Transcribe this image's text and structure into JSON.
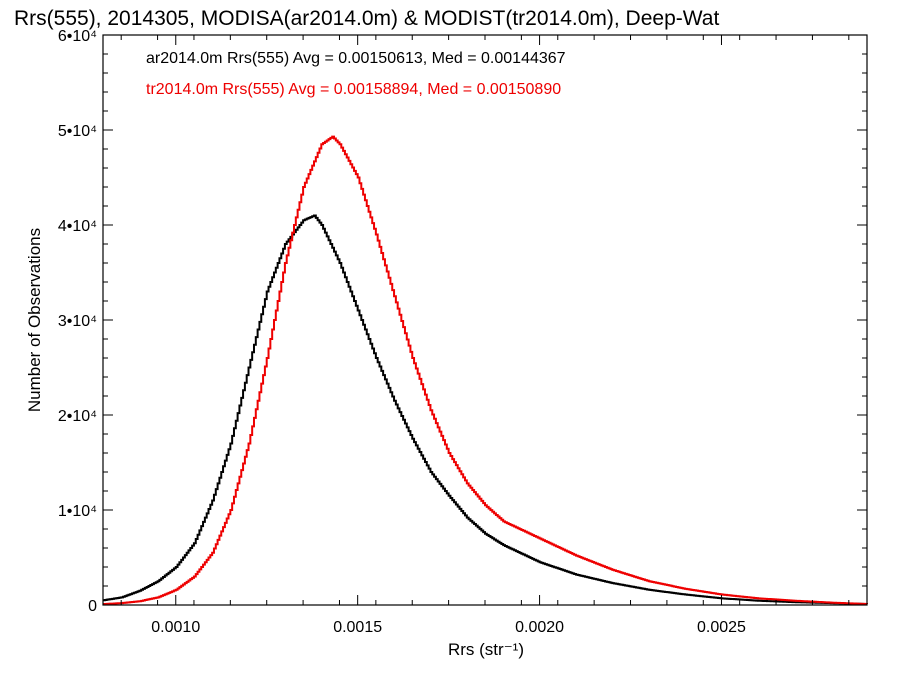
{
  "chart_data": {
    "type": "line",
    "title": "Rrs(555), 2014305, MODISA(ar2014.0m) & MODIST(tr2014.0m), Deep-Wat",
    "xlabel": "Rrs (str⁻¹)",
    "ylabel": "Number of Observations",
    "xlim": [
      0.0008,
      0.0029
    ],
    "ylim": [
      0,
      60000
    ],
    "x_ticks": [
      0.001,
      0.0015,
      0.002,
      0.0025
    ],
    "x_tick_labels": [
      "0.0010",
      "0.0015",
      "0.0020",
      "0.0025"
    ],
    "y_ticks": [
      0,
      10000,
      20000,
      30000,
      40000,
      50000,
      60000
    ],
    "y_tick_labels": [
      "0",
      "1•10⁴",
      "2•10⁴",
      "3•10⁴",
      "4•10⁴",
      "5•10⁴",
      "6•10⁴"
    ],
    "legend_position": "top-left",
    "grid": false,
    "series": [
      {
        "name": "ar2014.0m Rrs(555) Avg = 0.00150613, Med = 0.00144367",
        "color": "#000000",
        "x": [
          0.0008,
          0.00085,
          0.0009,
          0.00095,
          0.001,
          0.00105,
          0.0011,
          0.00115,
          0.0012,
          0.00125,
          0.0013,
          0.00135,
          0.00138,
          0.0014,
          0.00145,
          0.0015,
          0.00155,
          0.0016,
          0.00165,
          0.0017,
          0.00175,
          0.0018,
          0.00185,
          0.0019,
          0.002,
          0.0021,
          0.0022,
          0.0023,
          0.0024,
          0.0025,
          0.0026,
          0.0027,
          0.0028,
          0.0029
        ],
        "y": [
          500,
          800,
          1500,
          2500,
          4000,
          6500,
          11000,
          17000,
          25000,
          33000,
          38000,
          40500,
          41000,
          40000,
          36000,
          31000,
          26000,
          21500,
          17500,
          14000,
          11500,
          9200,
          7500,
          6300,
          4500,
          3200,
          2300,
          1600,
          1100,
          700,
          450,
          300,
          200,
          100
        ]
      },
      {
        "name": "tr2014.0m Rrs(555) Avg = 0.00158894, Med = 0.00150890",
        "color": "#ee0000",
        "x": [
          0.0008,
          0.00085,
          0.0009,
          0.00095,
          0.001,
          0.00105,
          0.0011,
          0.00115,
          0.0012,
          0.00125,
          0.0013,
          0.00135,
          0.0014,
          0.00143,
          0.00145,
          0.0015,
          0.00155,
          0.0016,
          0.00165,
          0.0017,
          0.00175,
          0.0018,
          0.00185,
          0.0019,
          0.002,
          0.0021,
          0.0022,
          0.0023,
          0.0024,
          0.0025,
          0.0026,
          0.0027,
          0.0028,
          0.0029
        ],
        "y": [
          100,
          200,
          400,
          800,
          1600,
          3000,
          5500,
          10000,
          17000,
          26000,
          36000,
          44000,
          48500,
          49300,
          48500,
          45000,
          39000,
          32500,
          26000,
          20500,
          16000,
          12800,
          10500,
          8800,
          7000,
          5200,
          3700,
          2500,
          1700,
          1100,
          700,
          450,
          250,
          100
        ]
      }
    ]
  }
}
